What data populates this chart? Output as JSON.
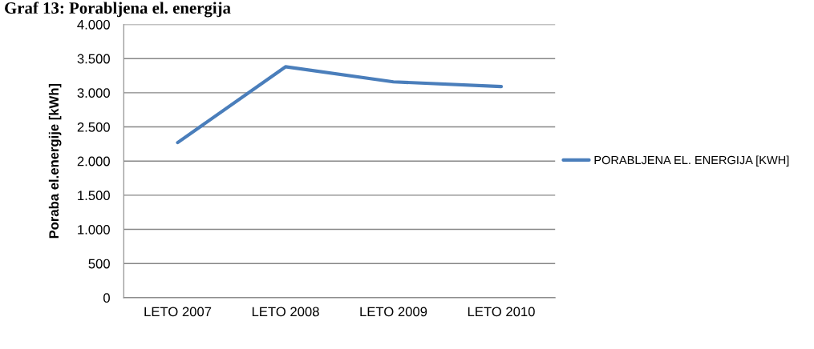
{
  "chart_data": {
    "type": "line",
    "title": "Graf 13: Porabljena el. energija",
    "categories": [
      "LETO 2007",
      "LETO 2008",
      "LETO 2009",
      "LETO 2010"
    ],
    "series": [
      {
        "name": "PORABLJENA EL. ENERGIJA [KWH]",
        "color": "#4a7ebb",
        "values": [
          2270,
          3380,
          3160,
          3090
        ]
      }
    ],
    "ylabel": "Poraba el.energije [kWh]",
    "ylim": [
      0,
      4000
    ],
    "yticks": [
      0,
      500,
      {
        "value": 1000,
        "label": "1.000"
      },
      {
        "value": 1500,
        "label": "1.500"
      },
      {
        "value": 2000,
        "label": "2.000"
      },
      {
        "value": 2500,
        "label": "2.500"
      },
      {
        "value": 3000,
        "label": "3.000"
      },
      {
        "value": 3500,
        "label": "3.500"
      },
      {
        "value": 4000,
        "label": "4.000"
      }
    ],
    "grid": "y",
    "legend": "right",
    "marker": "none",
    "line_style": "solid"
  }
}
